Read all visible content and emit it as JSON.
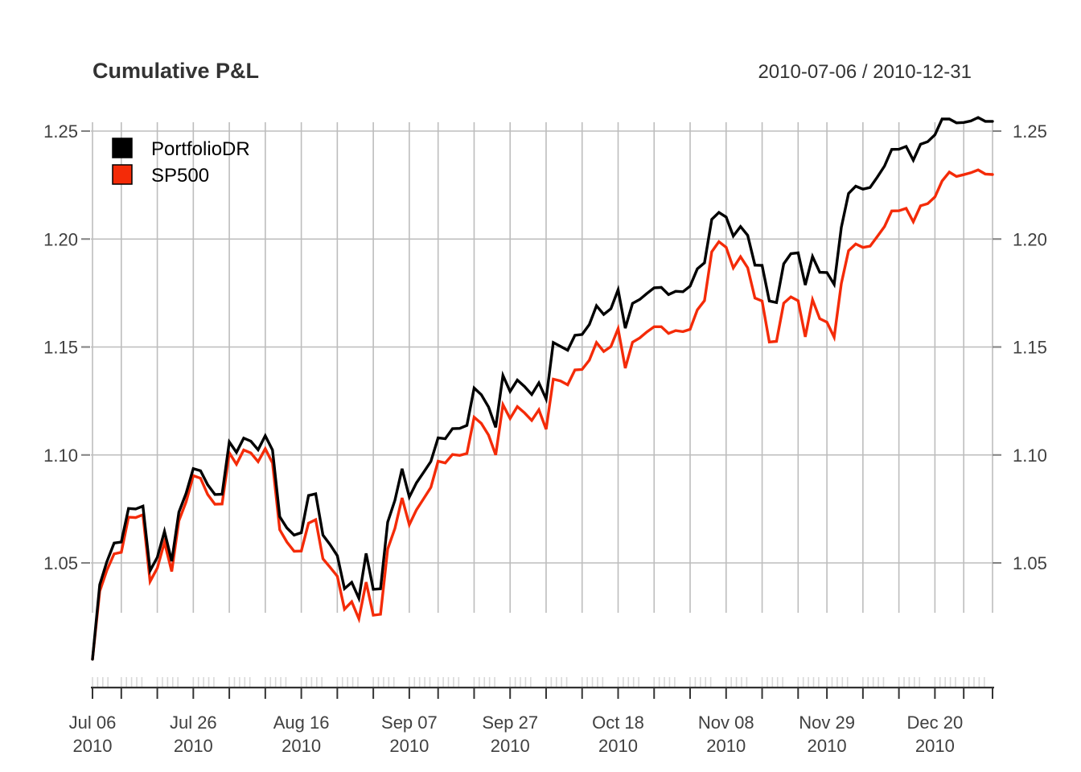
{
  "header": {
    "title": "Cumulative P&L",
    "date_range": "2010-07-06 / 2010-12-31"
  },
  "legend": {
    "items": [
      {
        "label": "PortfolioDR",
        "color": "#000000"
      },
      {
        "label": "SP500",
        "color": "#F42B08"
      }
    ]
  },
  "colors": {
    "background": "#ffffff",
    "grid": "#bdbdbd",
    "axis": "#333333",
    "minor_tick": "#d9d9d9",
    "stub": "#808080",
    "axis_text": "#404040",
    "title_text": "#333333",
    "portfolio_line": "#000000",
    "sp500_line": "#F42B08"
  },
  "y_axis": {
    "sides": [
      "left",
      "right"
    ],
    "tick_values": [
      1.05,
      1.1,
      1.15,
      1.2,
      1.25
    ],
    "tick_labels": [
      "1.05",
      "1.10",
      "1.15",
      "1.20",
      "1.25"
    ]
  },
  "x_axis": {
    "major_ticks": [
      {
        "index": 0,
        "line1": "Jul 06",
        "line2": "2010"
      },
      {
        "index": 14,
        "line1": "Jul 26",
        "line2": "2010"
      },
      {
        "index": 29,
        "line1": "Aug 16",
        "line2": "2010"
      },
      {
        "index": 44,
        "line1": "Sep 07",
        "line2": "2010"
      },
      {
        "index": 58,
        "line1": "Sep 27",
        "line2": "2010"
      },
      {
        "index": 73,
        "line1": "Oct 18",
        "line2": "2010"
      },
      {
        "index": 88,
        "line1": "Nov 08",
        "line2": "2010"
      },
      {
        "index": 102,
        "line1": "Nov 29",
        "line2": "2010"
      },
      {
        "index": 117,
        "line1": "Dec 20",
        "line2": "2010"
      }
    ]
  },
  "chart_data": {
    "type": "line",
    "title": "Cumulative P&L",
    "subtitle": "2010-07-06 / 2010-12-31",
    "ylim": [
      1.0,
      1.26
    ],
    "grid": {
      "horizontal_step": 0.05,
      "vertical": "weekly",
      "on": true
    },
    "legend_position": "top-left",
    "week_start_indices": [
      0,
      4,
      9,
      14,
      19,
      24,
      29,
      34,
      39,
      44,
      48,
      53,
      58,
      63,
      68,
      73,
      78,
      83,
      88,
      93,
      98,
      102,
      107,
      112,
      117,
      121
    ],
    "x_dates": [
      "2010-07-06",
      "2010-07-07",
      "2010-07-08",
      "2010-07-09",
      "2010-07-12",
      "2010-07-13",
      "2010-07-14",
      "2010-07-15",
      "2010-07-16",
      "2010-07-19",
      "2010-07-20",
      "2010-07-21",
      "2010-07-22",
      "2010-07-23",
      "2010-07-26",
      "2010-07-27",
      "2010-07-28",
      "2010-07-29",
      "2010-07-30",
      "2010-08-02",
      "2010-08-03",
      "2010-08-04",
      "2010-08-05",
      "2010-08-06",
      "2010-08-09",
      "2010-08-10",
      "2010-08-11",
      "2010-08-12",
      "2010-08-13",
      "2010-08-16",
      "2010-08-17",
      "2010-08-18",
      "2010-08-19",
      "2010-08-20",
      "2010-08-23",
      "2010-08-24",
      "2010-08-25",
      "2010-08-26",
      "2010-08-27",
      "2010-08-30",
      "2010-08-31",
      "2010-09-01",
      "2010-09-02",
      "2010-09-03",
      "2010-09-07",
      "2010-09-08",
      "2010-09-09",
      "2010-09-10",
      "2010-09-13",
      "2010-09-14",
      "2010-09-15",
      "2010-09-16",
      "2010-09-17",
      "2010-09-20",
      "2010-09-21",
      "2010-09-22",
      "2010-09-23",
      "2010-09-24",
      "2010-09-27",
      "2010-09-28",
      "2010-09-29",
      "2010-09-30",
      "2010-10-01",
      "2010-10-04",
      "2010-10-05",
      "2010-10-06",
      "2010-10-07",
      "2010-10-08",
      "2010-10-11",
      "2010-10-12",
      "2010-10-13",
      "2010-10-14",
      "2010-10-15",
      "2010-10-18",
      "2010-10-19",
      "2010-10-20",
      "2010-10-21",
      "2010-10-22",
      "2010-10-25",
      "2010-10-26",
      "2010-10-27",
      "2010-10-28",
      "2010-10-29",
      "2010-11-01",
      "2010-11-02",
      "2010-11-03",
      "2010-11-04",
      "2010-11-05",
      "2010-11-08",
      "2010-11-09",
      "2010-11-10",
      "2010-11-11",
      "2010-11-12",
      "2010-11-15",
      "2010-11-16",
      "2010-11-17",
      "2010-11-18",
      "2010-11-19",
      "2010-11-22",
      "2010-11-23",
      "2010-11-24",
      "2010-11-26",
      "2010-11-29",
      "2010-11-30",
      "2010-12-01",
      "2010-12-02",
      "2010-12-03",
      "2010-12-06",
      "2010-12-07",
      "2010-12-08",
      "2010-12-09",
      "2010-12-10",
      "2010-12-13",
      "2010-12-14",
      "2010-12-15",
      "2010-12-16",
      "2010-12-17",
      "2010-12-20",
      "2010-12-21",
      "2010-12-22",
      "2010-12-23",
      "2010-12-27",
      "2010-12-28",
      "2010-12-29",
      "2010-12-30",
      "2010-12-31"
    ],
    "series": [
      {
        "name": "PortfolioDR",
        "color": "#000000",
        "values": [
          1.0054,
          1.0399,
          1.0506,
          1.0592,
          1.0597,
          1.0752,
          1.075,
          1.0763,
          1.0464,
          1.0526,
          1.0646,
          1.0508,
          1.0735,
          1.0823,
          1.0937,
          1.0927,
          1.0862,
          1.0817,
          1.0818,
          1.106,
          1.1012,
          1.1078,
          1.1064,
          1.1024,
          1.1089,
          1.1023,
          1.0714,
          1.0662,
          1.0629,
          1.064,
          1.0812,
          1.082,
          1.0629,
          1.0585,
          1.0533,
          1.0381,
          1.041,
          1.0336,
          1.0544,
          1.0378,
          1.038,
          1.0689,
          1.079,
          1.0936,
          1.0805,
          1.0871,
          1.092,
          1.097,
          1.1079,
          1.1075,
          1.1122,
          1.1123,
          1.1137,
          1.131,
          1.1279,
          1.1222,
          1.1128,
          1.1368,
          1.1294,
          1.1347,
          1.1317,
          1.128,
          1.1334,
          1.1259,
          1.1521,
          1.1503,
          1.1485,
          1.1554,
          1.1558,
          1.1604,
          1.1691,
          1.1651,
          1.1677,
          1.1765,
          1.1587,
          1.1702,
          1.172,
          1.1748,
          1.1774,
          1.1776,
          1.1743,
          1.1758,
          1.1756,
          1.1782,
          1.1862,
          1.189,
          1.2091,
          1.2123,
          1.2102,
          1.2014,
          1.2058,
          1.2017,
          1.1879,
          1.1878,
          1.1713,
          1.1706,
          1.1885,
          1.1932,
          1.1936,
          1.1787,
          1.1919,
          1.1846,
          1.1845,
          1.179,
          1.2054,
          1.2211,
          1.2245,
          1.2231,
          1.2239,
          1.2287,
          1.2338,
          1.2415,
          1.2416,
          1.2429,
          1.2365,
          1.2439,
          1.2451,
          1.2483,
          1.2556,
          1.2556,
          1.2538,
          1.254,
          1.2547,
          1.2563,
          1.2545,
          1.2545
        ]
      },
      {
        "name": "SP500",
        "color": "#F42B08",
        "values": [
          1.0054,
          1.0369,
          1.0466,
          1.0542,
          1.0549,
          1.0712,
          1.071,
          1.0723,
          1.0414,
          1.0476,
          1.0596,
          1.046,
          1.0695,
          1.0783,
          1.0904,
          1.0892,
          1.0817,
          1.0772,
          1.0773,
          1.101,
          1.0957,
          1.1023,
          1.1009,
          1.0969,
          1.1029,
          1.0963,
          1.0654,
          1.0597,
          1.0554,
          1.0555,
          1.0684,
          1.07,
          1.0519,
          1.048,
          1.0438,
          1.0286,
          1.032,
          1.0241,
          1.0411,
          1.0258,
          1.0262,
          1.0564,
          1.066,
          1.0801,
          1.0677,
          1.0746,
          1.0798,
          1.085,
          1.0971,
          1.0963,
          1.1002,
          1.0998,
          1.1007,
          1.1175,
          1.1146,
          1.1092,
          1.1,
          1.1233,
          1.1169,
          1.1224,
          1.1195,
          1.116,
          1.1209,
          1.1119,
          1.1351,
          1.1343,
          1.1325,
          1.1394,
          1.1396,
          1.1439,
          1.1521,
          1.1479,
          1.1502,
          1.1585,
          1.1402,
          1.1522,
          1.1542,
          1.157,
          1.1594,
          1.1594,
          1.1563,
          1.1576,
          1.1571,
          1.1582,
          1.1672,
          1.1715,
          1.1941,
          1.1988,
          1.1962,
          1.1866,
          1.1918,
          1.1867,
          1.1727,
          1.1713,
          1.1523,
          1.1526,
          1.1703,
          1.1732,
          1.1714,
          1.1547,
          1.1719,
          1.1631,
          1.1615,
          1.1545,
          1.1794,
          1.1946,
          1.1977,
          1.1961,
          1.1967,
          1.2012,
          1.2058,
          1.213,
          1.2131,
          1.2142,
          1.208,
          1.2154,
          1.2164,
          1.2195,
          1.2269,
          1.231,
          1.229,
          1.2298,
          1.2307,
          1.232,
          1.2301,
          1.2299
        ]
      }
    ]
  }
}
